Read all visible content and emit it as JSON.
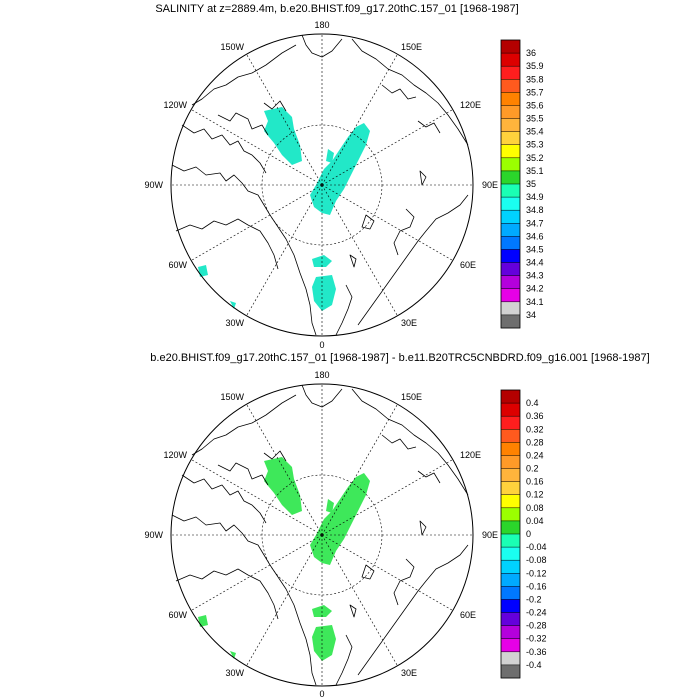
{
  "panels": [
    {
      "title": "SALINITY at z=2889.4m, b.e20.BHIST.f09_g17.20thC.157_01 [1968-1987]",
      "lon_labels": {
        "top": "180",
        "bottom": "0",
        "left": "90W",
        "right": "90E",
        "upper_left_inner": "120W",
        "upper_left_outer": "150W",
        "upper_right_outer": "150E",
        "upper_right_inner": "120E",
        "lower_left_inner": "60W",
        "lower_left_outer": "30W",
        "lower_right_inner": "60E",
        "lower_right_outer": "30E"
      },
      "colorbar": {
        "labels": [
          "36",
          "35.9",
          "35.8",
          "35.7",
          "35.6",
          "35.5",
          "35.4",
          "35.3",
          "35.2",
          "35.1",
          "35",
          "34.9",
          "34.8",
          "34.7",
          "34.6",
          "34.5",
          "34.4",
          "34.3",
          "34.2",
          "34.1",
          "34"
        ],
        "colors": [
          "#b40000",
          "#dc0000",
          "#ff1e1e",
          "#ff5a1e",
          "#ff8200",
          "#ff9a28",
          "#ffb43c",
          "#ffd23c",
          "#ffff00",
          "#9bff00",
          "#2bd62b",
          "#1affb4",
          "#1afff0",
          "#00d2ff",
          "#00aaff",
          "#0078ff",
          "#0000ff",
          "#6400dc",
          "#b400dc",
          "#e600e6",
          "#d2d2d2",
          "#6e6e6e"
        ]
      },
      "field_color": "#22e8c8"
    },
    {
      "title": "b.e20.BHIST.f09_g17.20thC.157_01 [1968-1987] - b.e11.B20TRC5CNBDRD.f09_g16.001 [1968-1987]",
      "lon_labels": {
        "top": "180",
        "bottom": "0",
        "left": "90W",
        "right": "90E",
        "upper_left_inner": "120W",
        "upper_left_outer": "150W",
        "upper_right_outer": "150E",
        "upper_right_inner": "120E",
        "lower_left_inner": "60W",
        "lower_left_outer": "30W",
        "lower_right_inner": "60E",
        "lower_right_outer": "30E"
      },
      "colorbar": {
        "labels": [
          "0.4",
          "0.36",
          "0.32",
          "0.28",
          "0.24",
          "0.2",
          "0.16",
          "0.12",
          "0.08",
          "0.04",
          "0",
          "-0.04",
          "-0.08",
          "-0.12",
          "-0.16",
          "-0.2",
          "-0.24",
          "-0.28",
          "-0.32",
          "-0.36",
          "-0.4"
        ],
        "colors": [
          "#b40000",
          "#dc0000",
          "#ff1e1e",
          "#ff5a1e",
          "#ff8200",
          "#ff9a28",
          "#ffb43c",
          "#ffd23c",
          "#ffff00",
          "#9bff00",
          "#2bd62b",
          "#1affb4",
          "#1afff0",
          "#00d2ff",
          "#00aaff",
          "#0078ff",
          "#0000ff",
          "#6400dc",
          "#b400dc",
          "#e600e6",
          "#d2d2d2",
          "#6e6e6e"
        ]
      },
      "field_color": "#3ee85a"
    }
  ]
}
